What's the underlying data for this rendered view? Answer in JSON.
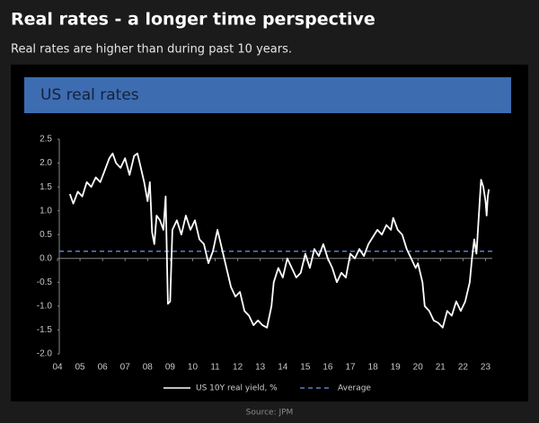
{
  "title": "Real rates - a longer time perspective",
  "subtitle": "Real rates are higher than during past 10 years.",
  "source": "Source: JPM",
  "chart_data": {
    "type": "line",
    "title": "US real rates",
    "x": [
      2004.55,
      2004.7,
      2004.9,
      2005.1,
      2005.3,
      2005.5,
      2005.7,
      2005.9,
      2006.1,
      2006.3,
      2006.45,
      2006.6,
      2006.8,
      2007.0,
      2007.2,
      2007.4,
      2007.55,
      2007.7,
      2007.85,
      2008.0,
      2008.1,
      2008.2,
      2008.3,
      2008.4,
      2008.55,
      2008.7,
      2008.8,
      2008.9,
      2009.0,
      2009.1,
      2009.3,
      2009.5,
      2009.7,
      2009.9,
      2010.1,
      2010.3,
      2010.5,
      2010.7,
      2010.9,
      2011.1,
      2011.3,
      2011.5,
      2011.7,
      2011.9,
      2012.1,
      2012.3,
      2012.5,
      2012.7,
      2012.9,
      2013.1,
      2013.3,
      2013.5,
      2013.6,
      2013.8,
      2014.0,
      2014.2,
      2014.4,
      2014.6,
      2014.8,
      2015.0,
      2015.2,
      2015.4,
      2015.6,
      2015.8,
      2016.0,
      2016.2,
      2016.4,
      2016.6,
      2016.8,
      2017.0,
      2017.2,
      2017.4,
      2017.6,
      2017.8,
      2018.0,
      2018.2,
      2018.4,
      2018.6,
      2018.8,
      2018.9,
      2019.1,
      2019.3,
      2019.5,
      2019.7,
      2019.9,
      2020.0,
      2020.2,
      2020.3,
      2020.5,
      2020.7,
      2020.9,
      2021.1,
      2021.3,
      2021.5,
      2021.7,
      2021.9,
      2022.1,
      2022.3,
      2022.4,
      2022.5,
      2022.6,
      2022.8,
      2022.9,
      2023.0,
      2023.05,
      2023.1,
      2023.15
    ],
    "series": [
      {
        "name": "US 10Y real yield, %",
        "color": "#ffffff",
        "values": [
          1.35,
          1.15,
          1.4,
          1.3,
          1.6,
          1.5,
          1.7,
          1.6,
          1.85,
          2.1,
          2.2,
          2.0,
          1.9,
          2.1,
          1.75,
          2.15,
          2.2,
          1.9,
          1.6,
          1.2,
          1.6,
          0.55,
          0.3,
          0.9,
          0.8,
          0.6,
          1.3,
          -0.95,
          -0.9,
          0.6,
          0.8,
          0.5,
          0.9,
          0.6,
          0.8,
          0.4,
          0.3,
          -0.1,
          0.15,
          0.6,
          0.2,
          -0.2,
          -0.6,
          -0.8,
          -0.7,
          -1.1,
          -1.2,
          -1.4,
          -1.3,
          -1.4,
          -1.45,
          -1.0,
          -0.5,
          -0.2,
          -0.4,
          0.0,
          -0.2,
          -0.4,
          -0.3,
          0.1,
          -0.2,
          0.2,
          0.05,
          0.3,
          0.0,
          -0.2,
          -0.5,
          -0.3,
          -0.4,
          0.1,
          0.0,
          0.2,
          0.05,
          0.3,
          0.45,
          0.6,
          0.5,
          0.7,
          0.6,
          0.85,
          0.6,
          0.5,
          0.2,
          0.0,
          -0.2,
          -0.1,
          -0.5,
          -1.0,
          -1.1,
          -1.3,
          -1.35,
          -1.45,
          -1.1,
          -1.2,
          -0.9,
          -1.1,
          -0.9,
          -0.5,
          0.0,
          0.4,
          0.1,
          1.65,
          1.5,
          1.2,
          0.9,
          1.3,
          1.45
        ]
      }
    ],
    "average": {
      "name": "Average",
      "value": 0.15,
      "color": "#5a7fc4"
    },
    "xlim": [
      2004,
      2023.3
    ],
    "xticks": [
      {
        "value": 2004,
        "label": "04"
      },
      {
        "value": 2005,
        "label": "05"
      },
      {
        "value": 2006,
        "label": "06"
      },
      {
        "value": 2007,
        "label": "07"
      },
      {
        "value": 2008,
        "label": "08"
      },
      {
        "value": 2009,
        "label": "09"
      },
      {
        "value": 2010,
        "label": "10"
      },
      {
        "value": 2011,
        "label": "11"
      },
      {
        "value": 2012,
        "label": "12"
      },
      {
        "value": 2013,
        "label": "13"
      },
      {
        "value": 2014,
        "label": "14"
      },
      {
        "value": 2015,
        "label": "15"
      },
      {
        "value": 2016,
        "label": "16"
      },
      {
        "value": 2017,
        "label": "17"
      },
      {
        "value": 2018,
        "label": "18"
      },
      {
        "value": 2019,
        "label": "19"
      },
      {
        "value": 2020,
        "label": "20"
      },
      {
        "value": 2021,
        "label": "21"
      },
      {
        "value": 2022,
        "label": "22"
      },
      {
        "value": 2023,
        "label": "23"
      }
    ],
    "ylim": [
      -2,
      2.5
    ],
    "yticks": [
      2.5,
      {
        "value": 2,
        "label": "2.0"
      },
      1.5,
      {
        "value": 1,
        "label": "1.0"
      },
      0.5,
      {
        "value": 0,
        "label": "0.0"
      },
      -0.5,
      {
        "value": -1,
        "label": "-1.0"
      },
      -1.5,
      {
        "value": -2,
        "label": "-2.0"
      }
    ]
  }
}
